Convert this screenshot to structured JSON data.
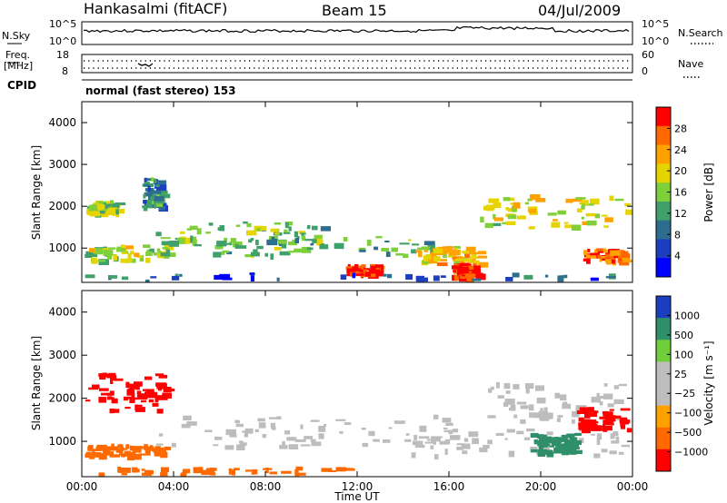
{
  "header": {
    "station": "Hankasalmi (fitACF)",
    "beam": "Beam 15",
    "date": "04/Jul/2009"
  },
  "top_panels": {
    "nsky": {
      "label": "N.Sky",
      "ticks": [
        "10^5",
        "10^0"
      ],
      "right_label": "N.Search",
      "right_ticks": [
        "10^5",
        "10^0"
      ]
    },
    "freq": {
      "label_line1": "Freq.",
      "label_line2": "[MHz]",
      "ticks": [
        "18",
        "8"
      ],
      "right_label": "Nave",
      "right_ticks": [
        "60",
        "0"
      ]
    },
    "cpid_label": "CPID",
    "mode_text": "normal (fast stereo) 153"
  },
  "chart_data": [
    {
      "type": "heatmap",
      "name": "power",
      "ylabel": "Slant Range [km]",
      "yticks": [
        "4000",
        "3000",
        "2000",
        "1000"
      ],
      "ylim": [
        180,
        4500
      ],
      "colorbar_label": "Power [dB]",
      "colorbar_ticks": [
        "28",
        "24",
        "20",
        "16",
        "12",
        "8",
        "4"
      ],
      "colorbar_colors": [
        "#ff0000",
        "#ff6a00",
        "#ffa200",
        "#e6d400",
        "#7fcf3a",
        "#3fa06a",
        "#2d6e8e",
        "#1c3fbf",
        "#0000ff"
      ],
      "bands": [
        {
          "t0": 0.1,
          "t1": 3.7,
          "r0": 720,
          "r1": 1100,
          "level": 0.55
        },
        {
          "t0": 0.2,
          "t1": 1.5,
          "r0": 1850,
          "r1": 2150,
          "level": 0.5
        },
        {
          "t0": 2.6,
          "t1": 3.4,
          "r0": 2000,
          "r1": 2700,
          "level": 0.3
        },
        {
          "t0": 3.2,
          "t1": 10.5,
          "r0": 1150,
          "r1": 1650,
          "level": 0.45
        },
        {
          "t0": 4.5,
          "t1": 15.8,
          "r0": 850,
          "r1": 1300,
          "level": 0.4
        },
        {
          "t0": 11.5,
          "t1": 12.9,
          "r0": 380,
          "r1": 620,
          "level": 0.95
        },
        {
          "t0": 14.5,
          "t1": 17.3,
          "r0": 650,
          "r1": 1050,
          "level": 0.7
        },
        {
          "t0": 16.1,
          "t1": 17.2,
          "r0": 300,
          "r1": 650,
          "level": 1.0
        },
        {
          "t0": 17.3,
          "t1": 23.9,
          "r0": 1500,
          "r1": 2300,
          "level": 0.6
        },
        {
          "t0": 21.8,
          "t1": 23.9,
          "r0": 700,
          "r1": 1000,
          "level": 0.9
        },
        {
          "t0": 0.0,
          "t1": 24.0,
          "r0": 180,
          "r1": 420,
          "level": 0.2
        }
      ]
    },
    {
      "type": "heatmap",
      "name": "velocity",
      "ylabel": "Slant Range [km]",
      "yticks": [
        "4000",
        "3000",
        "2000",
        "1000"
      ],
      "ylim": [
        180,
        4500
      ],
      "xlabel": "Time UT",
      "xticks": [
        "00:00",
        "04:00",
        "08:00",
        "12:00",
        "16:00",
        "20:00",
        "00:00"
      ],
      "xlim": [
        0,
        24
      ],
      "colorbar_label": "Velocity [m s⁻¹]",
      "colorbar_ticks": [
        "1000",
        "500",
        "100",
        "25",
        "−25",
        "−100",
        "−500",
        "−1000"
      ],
      "colorbar_colors": [
        "#1c3fbf",
        "#2f8f6a",
        "#6fcf3a",
        "#bdbdbd",
        "#bdbdbd",
        "#ffa200",
        "#ff6a00",
        "#ff0000"
      ],
      "bands": [
        {
          "t0": 0.1,
          "t1": 3.6,
          "r0": 1750,
          "r1": 2600,
          "level": -0.85
        },
        {
          "t0": 0.1,
          "t1": 3.6,
          "r0": 700,
          "r1": 950,
          "level": -0.55
        },
        {
          "t0": 3.2,
          "t1": 16.0,
          "r0": 900,
          "r1": 1650,
          "level": 0.0
        },
        {
          "t0": 0.2,
          "t1": 11.5,
          "r0": 200,
          "r1": 420,
          "level": -0.55
        },
        {
          "t0": 14.0,
          "t1": 23.9,
          "r0": 700,
          "r1": 1300,
          "level": 0.0
        },
        {
          "t0": 17.5,
          "t1": 23.9,
          "r0": 1500,
          "r1": 2400,
          "level": 0.0
        },
        {
          "t0": 19.5,
          "t1": 21.5,
          "r0": 750,
          "r1": 1200,
          "level": 0.55
        },
        {
          "t0": 21.5,
          "t1": 23.9,
          "r0": 1300,
          "r1": 1800,
          "level": -0.8
        }
      ]
    }
  ]
}
